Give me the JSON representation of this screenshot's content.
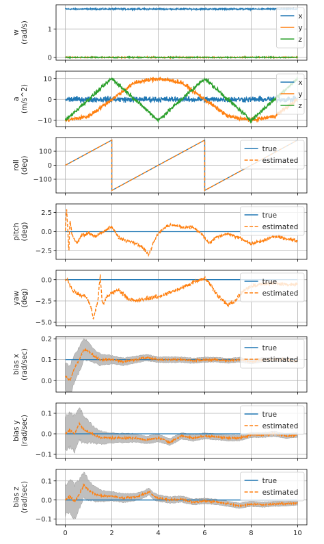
{
  "colors": {
    "x": "#1f77b4",
    "y": "#ff7f0e",
    "z": "#2ca02c",
    "true": "#1f77b4",
    "estimated": "#ff7f0e",
    "band": "#aaaaaa",
    "grid": "#b0b0b0"
  },
  "chart_data": [
    {
      "type": "line",
      "ylabel": [
        "w",
        "(rad/s)"
      ],
      "xlim": [
        -0.4,
        10.4
      ],
      "ylim": [
        -0.1,
        1.85
      ],
      "yticks": [
        0,
        1
      ],
      "xticks": [
        0,
        2,
        4,
        6,
        8,
        10
      ],
      "legend": "upper right",
      "grid": true,
      "series": [
        {
          "name": "x",
          "key": "x",
          "style": "solid",
          "t": [
            0,
            10
          ],
          "values": [
            1.7,
            1.7
          ],
          "noise": 0.02
        },
        {
          "name": "y",
          "key": "y",
          "style": "solid",
          "t": [
            0,
            10
          ],
          "values": [
            0.0,
            0.0
          ],
          "noise": 0.015
        },
        {
          "name": "z",
          "key": "z",
          "style": "solid",
          "t": [
            0,
            10
          ],
          "values": [
            0.0,
            0.0
          ],
          "noise": 0.015
        }
      ]
    },
    {
      "type": "line",
      "ylabel": [
        "a",
        "(m/s^2)"
      ],
      "xlim": [
        -0.4,
        10.4
      ],
      "ylim": [
        -13,
        13.5
      ],
      "yticks": [
        -10,
        0,
        10
      ],
      "xticks": [
        0,
        2,
        4,
        6,
        8,
        10
      ],
      "legend": "upper right",
      "grid": true,
      "series": [
        {
          "name": "x",
          "key": "x",
          "style": "solid",
          "t": [
            0,
            10
          ],
          "values": [
            0,
            0
          ],
          "noise": 1.2
        },
        {
          "name": "y",
          "key": "y",
          "style": "solid",
          "t": [
            0,
            1,
            2,
            3,
            4,
            5,
            6,
            7,
            8,
            9,
            10
          ],
          "values": [
            -10,
            -8.1,
            0,
            8.1,
            10,
            8.1,
            0,
            -8.1,
            -10,
            -8.1,
            0
          ],
          "noise": 0.9
        },
        {
          "name": "z",
          "key": "z",
          "style": "solid",
          "t": [
            0,
            1,
            2,
            3,
            4,
            5,
            6,
            7,
            8,
            9,
            10
          ],
          "values": [
            -10,
            0,
            10,
            0,
            -10,
            0,
            10,
            0,
            -10,
            0,
            10
          ],
          "noise": 0.9
        }
      ]
    },
    {
      "type": "line",
      "ylabel": [
        "roll",
        "(deg)"
      ],
      "xlim": [
        -0.4,
        10.4
      ],
      "ylim": [
        -198,
        198
      ],
      "yticks": [
        -100,
        0,
        100
      ],
      "xticks": [
        0,
        2,
        4,
        6,
        8,
        10
      ],
      "legend": "upper right",
      "grid": true,
      "series": [
        {
          "name": "true",
          "key": "true",
          "style": "solid",
          "t": [
            0,
            2,
            2,
            6,
            6,
            10
          ],
          "values": [
            0,
            180,
            -180,
            180,
            -180,
            180
          ],
          "noise": 0
        },
        {
          "name": "estimated",
          "key": "estimated",
          "style": "dashed",
          "t": [
            0,
            2,
            2,
            6,
            6,
            10
          ],
          "values": [
            0,
            180,
            -180,
            180,
            -180,
            180
          ],
          "noise": 0
        }
      ]
    },
    {
      "type": "line",
      "ylabel": [
        "pitch",
        "(deg)"
      ],
      "xlim": [
        -0.4,
        10.4
      ],
      "ylim": [
        -3.6,
        3.6
      ],
      "yticks": [
        -2.5,
        0.0,
        2.5
      ],
      "tickfmt": 1,
      "xticks": [
        0,
        2,
        4,
        6,
        8,
        10
      ],
      "legend": "upper right",
      "grid": true,
      "series": [
        {
          "name": "true",
          "key": "true",
          "style": "solid",
          "t": [
            0,
            10
          ],
          "values": [
            0,
            0
          ],
          "noise": 0
        },
        {
          "name": "estimated",
          "key": "estimated",
          "style": "dashed",
          "t": [
            0,
            0.05,
            0.1,
            0.15,
            0.2,
            0.3,
            0.5,
            0.7,
            1.0,
            1.3,
            1.6,
            2.0,
            2.3,
            2.6,
            3.0,
            3.3,
            3.6,
            3.8,
            4.0,
            4.3,
            4.6,
            5.0,
            5.5,
            5.9,
            6.2,
            6.5,
            7.0,
            7.5,
            8.0,
            8.5,
            9.0,
            9.5,
            10.0
          ],
          "values": [
            0,
            3.2,
            0.5,
            -2.6,
            1.5,
            -0.5,
            -1.5,
            -0.5,
            -0.2,
            -0.6,
            -0.1,
            0.7,
            -0.8,
            -1.2,
            -1.4,
            -2.0,
            -3.0,
            -1.3,
            -0.2,
            0.6,
            0.9,
            0.6,
            0.6,
            -0.4,
            -1.6,
            -0.7,
            -0.3,
            -0.8,
            -1.6,
            -1.2,
            -0.6,
            -0.9,
            -1.2
          ],
          "noise": 0.18
        }
      ]
    },
    {
      "type": "line",
      "ylabel": [
        "yaw",
        "(deg)"
      ],
      "xlim": [
        -0.4,
        10.4
      ],
      "ylim": [
        -5.4,
        1.1
      ],
      "yticks": [
        -5.0,
        -2.5,
        0.0
      ],
      "tickfmt": 1,
      "xticks": [
        0,
        2,
        4,
        6,
        8,
        10
      ],
      "legend": "upper right",
      "grid": true,
      "series": [
        {
          "name": "true",
          "key": "true",
          "style": "solid",
          "t": [
            0,
            10
          ],
          "values": [
            0,
            0
          ],
          "noise": 0
        },
        {
          "name": "estimated",
          "key": "estimated",
          "style": "dashed",
          "t": [
            0,
            0.1,
            0.3,
            0.6,
            0.9,
            1.1,
            1.2,
            1.4,
            1.5,
            1.6,
            1.8,
            2.0,
            2.3,
            2.7,
            3.0,
            3.5,
            4.0,
            4.5,
            5.0,
            5.5,
            6.0,
            6.3,
            6.6,
            7.0,
            7.3,
            7.6,
            8.0,
            8.5,
            9.0,
            9.5,
            10.0
          ],
          "values": [
            0,
            0,
            -1.2,
            -1.8,
            -2.0,
            -3.2,
            -4.6,
            -2.5,
            0.5,
            -3.0,
            -2.0,
            -1.5,
            -1.2,
            -2.2,
            -2.5,
            -2.2,
            -2.0,
            -1.5,
            -1.0,
            -0.3,
            0.2,
            -0.8,
            -2.0,
            -3.0,
            -2.5,
            -1.5,
            -0.7,
            -0.5,
            -0.4,
            -0.6,
            -0.5
          ],
          "noise": 0.2
        }
      ]
    },
    {
      "type": "line",
      "ylabel": [
        "bias x",
        "(rad/sec)"
      ],
      "xlim": [
        -0.4,
        10.4
      ],
      "ylim": [
        -0.055,
        0.21
      ],
      "yticks": [
        0.0,
        0.1,
        0.2
      ],
      "tickfmt": 1,
      "xticks": [
        0,
        2,
        4,
        6,
        8,
        10
      ],
      "legend": "upper right",
      "grid": true,
      "series": [
        {
          "name": "true",
          "key": "true",
          "style": "solid",
          "t": [
            0,
            10
          ],
          "values": [
            0.1,
            0.1
          ],
          "noise": 0
        },
        {
          "name": "estimated",
          "key": "estimated",
          "style": "dashed",
          "t": [
            0,
            0.2,
            0.4,
            0.6,
            0.8,
            1.0,
            1.2,
            1.5,
            2.0,
            2.5,
            3.0,
            3.5,
            4.0,
            4.5,
            5.0,
            5.5,
            6.0,
            6.5,
            7.0,
            7.5,
            8.0,
            8.5,
            9.0,
            9.5,
            10.0
          ],
          "values": [
            0.02,
            0.0,
            0.06,
            0.1,
            0.15,
            0.14,
            0.12,
            0.1,
            0.1,
            0.09,
            0.1,
            0.11,
            0.1,
            0.1,
            0.1,
            0.095,
            0.1,
            0.1,
            0.095,
            0.1,
            0.09,
            0.1,
            0.1,
            0.1,
            0.095
          ],
          "noise": 0.004
        },
        {
          "name": "band",
          "key": "band",
          "style": "band",
          "t": [
            0,
            0.3,
            0.6,
            0.9,
            1.2,
            1.6,
            2.0,
            3.0,
            4.0,
            6.0,
            8.0,
            10.0
          ],
          "half_width": [
            0.07,
            0.07,
            0.06,
            0.05,
            0.035,
            0.025,
            0.02,
            0.016,
            0.014,
            0.012,
            0.011,
            0.01
          ],
          "follows": "estimated"
        }
      ]
    },
    {
      "type": "line",
      "ylabel": [
        "bias y",
        "(rad/sec)"
      ],
      "xlim": [
        -0.4,
        10.4
      ],
      "ylim": [
        -0.12,
        0.15
      ],
      "yticks": [
        -0.1,
        0.0,
        0.1
      ],
      "tickfmt": 1,
      "xticks": [
        0,
        2,
        4,
        6,
        8,
        10
      ],
      "legend": "upper right",
      "grid": true,
      "series": [
        {
          "name": "true",
          "key": "true",
          "style": "solid",
          "t": [
            0,
            10
          ],
          "values": [
            0.0,
            0.0
          ],
          "noise": 0
        },
        {
          "name": "estimated",
          "key": "estimated",
          "style": "dashed",
          "t": [
            0,
            0.2,
            0.4,
            0.6,
            0.8,
            1.0,
            1.3,
            1.6,
            2.0,
            2.5,
            3.0,
            3.5,
            4.0,
            4.5,
            5.0,
            5.5,
            6.0,
            6.5,
            7.0,
            7.5,
            8.0,
            8.5,
            9.0,
            9.5,
            10.0
          ],
          "values": [
            0.0,
            0.02,
            0.0,
            0.05,
            0.02,
            0.01,
            -0.01,
            -0.02,
            -0.02,
            -0.02,
            -0.02,
            -0.03,
            -0.02,
            -0.04,
            -0.01,
            -0.02,
            -0.01,
            -0.015,
            -0.02,
            -0.02,
            -0.005,
            -0.005,
            0.0,
            -0.01,
            -0.005
          ],
          "noise": 0.004
        },
        {
          "name": "band",
          "key": "band",
          "style": "band",
          "t": [
            0,
            0.3,
            0.6,
            0.9,
            1.2,
            1.6,
            2.0,
            3.0,
            4.0,
            6.0,
            8.0,
            10.0
          ],
          "half_width": [
            0.08,
            0.09,
            0.08,
            0.06,
            0.04,
            0.03,
            0.025,
            0.02,
            0.018,
            0.015,
            0.013,
            0.012
          ],
          "follows": "estimated"
        }
      ]
    },
    {
      "type": "line",
      "ylabel": [
        "bias z",
        "(rad/sec)"
      ],
      "xlim": [
        -0.4,
        10.4
      ],
      "ylim": [
        -0.13,
        0.16
      ],
      "yticks": [
        -0.1,
        0.0,
        0.1
      ],
      "tickfmt": 1,
      "xticks": [
        0,
        2,
        4,
        6,
        8,
        10
      ],
      "xticklabels": [
        "0",
        "2",
        "4",
        "6",
        "8",
        "10"
      ],
      "legend": "upper right",
      "grid": true,
      "series": [
        {
          "name": "true",
          "key": "true",
          "style": "solid",
          "t": [
            0,
            10
          ],
          "values": [
            0.0,
            0.0
          ],
          "noise": 0
        },
        {
          "name": "estimated",
          "key": "estimated",
          "style": "dashed",
          "t": [
            0,
            0.2,
            0.4,
            0.6,
            0.8,
            1.0,
            1.3,
            1.6,
            2.0,
            2.5,
            3.0,
            3.4,
            3.6,
            3.8,
            4.0,
            4.5,
            5.0,
            5.5,
            6.0,
            6.5,
            7.0,
            7.5,
            8.0,
            8.5,
            9.0,
            9.5,
            10.0
          ],
          "values": [
            0.0,
            0.02,
            -0.01,
            0.03,
            0.08,
            0.05,
            0.03,
            0.02,
            0.02,
            0.01,
            0.015,
            0.03,
            0.045,
            0.02,
            0.01,
            0.0,
            0.005,
            -0.01,
            -0.005,
            -0.01,
            -0.02,
            -0.03,
            -0.02,
            -0.025,
            -0.02,
            -0.02,
            -0.015
          ],
          "noise": 0.004
        },
        {
          "name": "band",
          "key": "band",
          "style": "band",
          "t": [
            0,
            0.3,
            0.6,
            0.9,
            1.2,
            1.6,
            2.0,
            3.0,
            4.0,
            6.0,
            8.0,
            10.0
          ],
          "half_width": [
            0.08,
            0.09,
            0.08,
            0.06,
            0.04,
            0.03,
            0.025,
            0.02,
            0.018,
            0.015,
            0.013,
            0.012
          ],
          "follows": "estimated"
        }
      ]
    }
  ]
}
